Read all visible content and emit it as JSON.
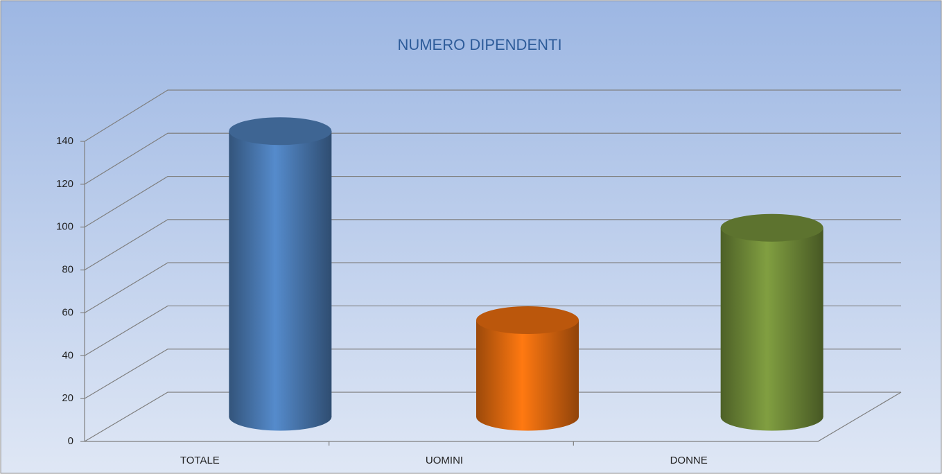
{
  "chart_data": {
    "type": "bar",
    "title": "NUMERO DIPENDENTI",
    "categories": [
      "TOTALE",
      "UOMINI",
      "DONNE"
    ],
    "values": [
      133,
      45,
      88
    ],
    "colors": [
      "#4f81bd",
      "#f07010",
      "#77933c"
    ],
    "ylim": [
      0,
      140
    ],
    "yticks": [
      0,
      20,
      40,
      60,
      80,
      100,
      120,
      140
    ],
    "grid": true
  }
}
